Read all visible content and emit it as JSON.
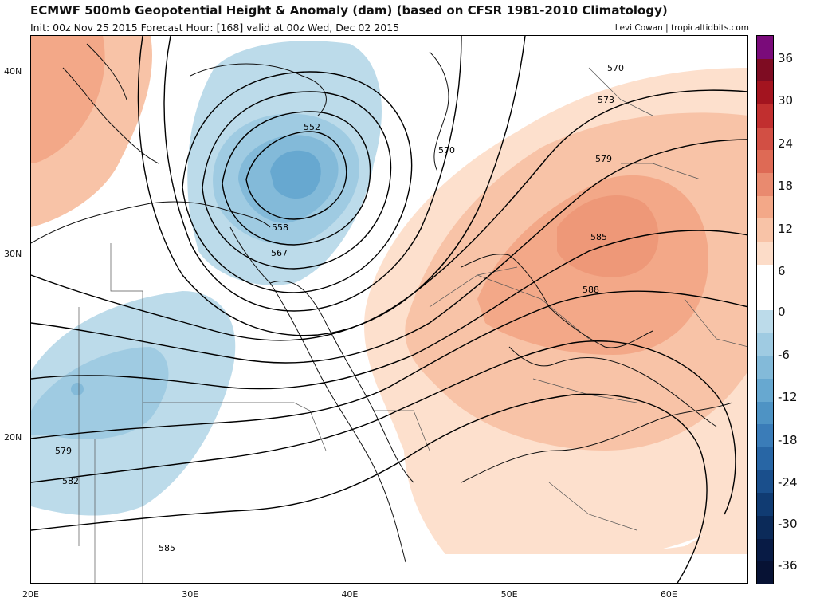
{
  "header": {
    "title": "ECMWF 500mb Geopotential Height & Anomaly (dam) (based on CFSR 1981-2010 Climatology)",
    "subtitle": "Init: 00z Nov 25 2015   Forecast Hour: [168]   valid at 00z Wed, Dec 02 2015",
    "credit": "Levi Cowan | tropicaltidbits.com"
  },
  "axes": {
    "lat_labels": [
      {
        "label": "40N",
        "lat": 40
      },
      {
        "label": "30N",
        "lat": 30
      },
      {
        "label": "20N",
        "lat": 20
      }
    ],
    "lon_labels": [
      {
        "label": "20E",
        "lon": 20
      },
      {
        "label": "30E",
        "lon": 30
      },
      {
        "label": "40E",
        "lon": 40
      },
      {
        "label": "50E",
        "lon": 50
      },
      {
        "label": "60E",
        "lon": 60
      }
    ],
    "lon_range": [
      20,
      65
    ],
    "lat_range": [
      12,
      42
    ]
  },
  "contours": [
    {
      "label": "552",
      "value": 552
    },
    {
      "label": "558",
      "value": 558
    },
    {
      "label": "567",
      "value": 567
    },
    {
      "label": "570",
      "value": 570
    },
    {
      "label": "570",
      "value": 570
    },
    {
      "label": "573",
      "value": 573
    },
    {
      "label": "579",
      "value": 579
    },
    {
      "label": "579",
      "value": 579
    },
    {
      "label": "582",
      "value": 582
    },
    {
      "label": "585",
      "value": 585
    },
    {
      "label": "585",
      "value": 585
    },
    {
      "label": "588",
      "value": 588
    }
  ],
  "colorbar": {
    "labels": [
      "36",
      "30",
      "24",
      "18",
      "12",
      "6",
      "0",
      "-6",
      "-12",
      "-18",
      "-24",
      "-30",
      "-36"
    ],
    "colors": [
      "#7a0b7a",
      "#7e0c22",
      "#a3141f",
      "#c12f2f",
      "#d24f44",
      "#de6a55",
      "#e98a6f",
      "#f3a888",
      "#f8c3a7",
      "#fcdcc8",
      "#ffffff",
      "#ffffff",
      "#bcdbea",
      "#9fcbe2",
      "#83bad9",
      "#67a8d0",
      "#4e93c4",
      "#3a7cb8",
      "#2866a5",
      "#1a4f8c",
      "#103b72",
      "#0b2a59",
      "#081b45",
      "#071234"
    ]
  }
}
